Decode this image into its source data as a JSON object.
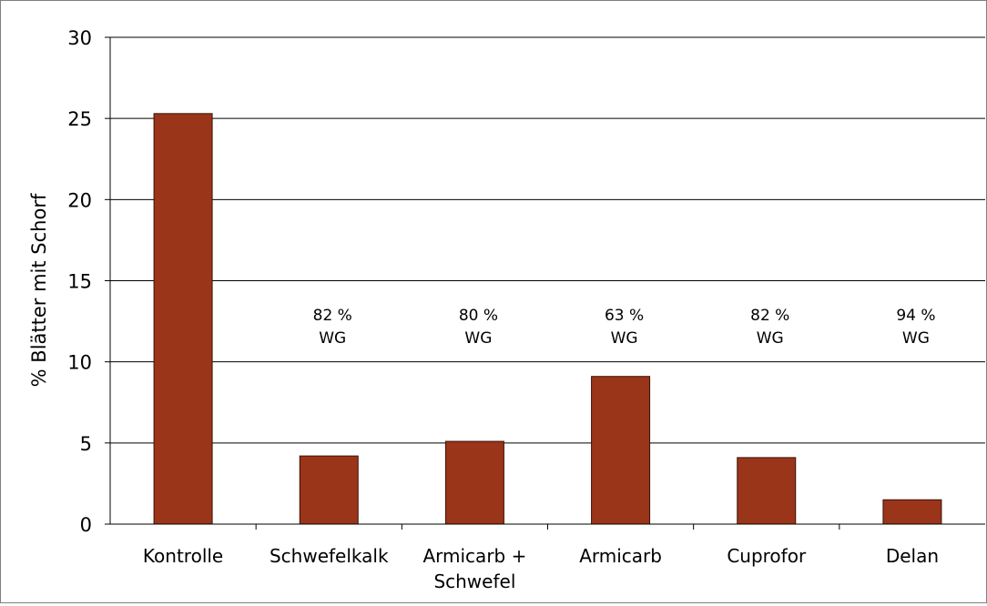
{
  "chart_data": {
    "type": "bar",
    "title": "",
    "xlabel": "",
    "ylabel": "% Blätter mit Schorf",
    "ylim": [
      0,
      30
    ],
    "yticks": [
      0,
      5,
      10,
      15,
      20,
      25,
      30
    ],
    "grid": true,
    "legend": "none",
    "bar_color": "#9a3519",
    "categories": [
      [
        "Kontrolle"
      ],
      [
        "Schwefelkalk"
      ],
      [
        "Armicarb +",
        "Schwefel"
      ],
      [
        "Armicarb"
      ],
      [
        "Cuprofor"
      ],
      [
        "Delan"
      ]
    ],
    "values": [
      25.3,
      4.2,
      5.1,
      9.1,
      4.1,
      1.5
    ],
    "annotations": [
      null,
      [
        "82 %",
        "WG"
      ],
      [
        "80 %",
        "WG"
      ],
      [
        "63 %",
        "WG"
      ],
      [
        "82 %",
        "WG"
      ],
      [
        "94 %",
        "WG"
      ]
    ]
  }
}
